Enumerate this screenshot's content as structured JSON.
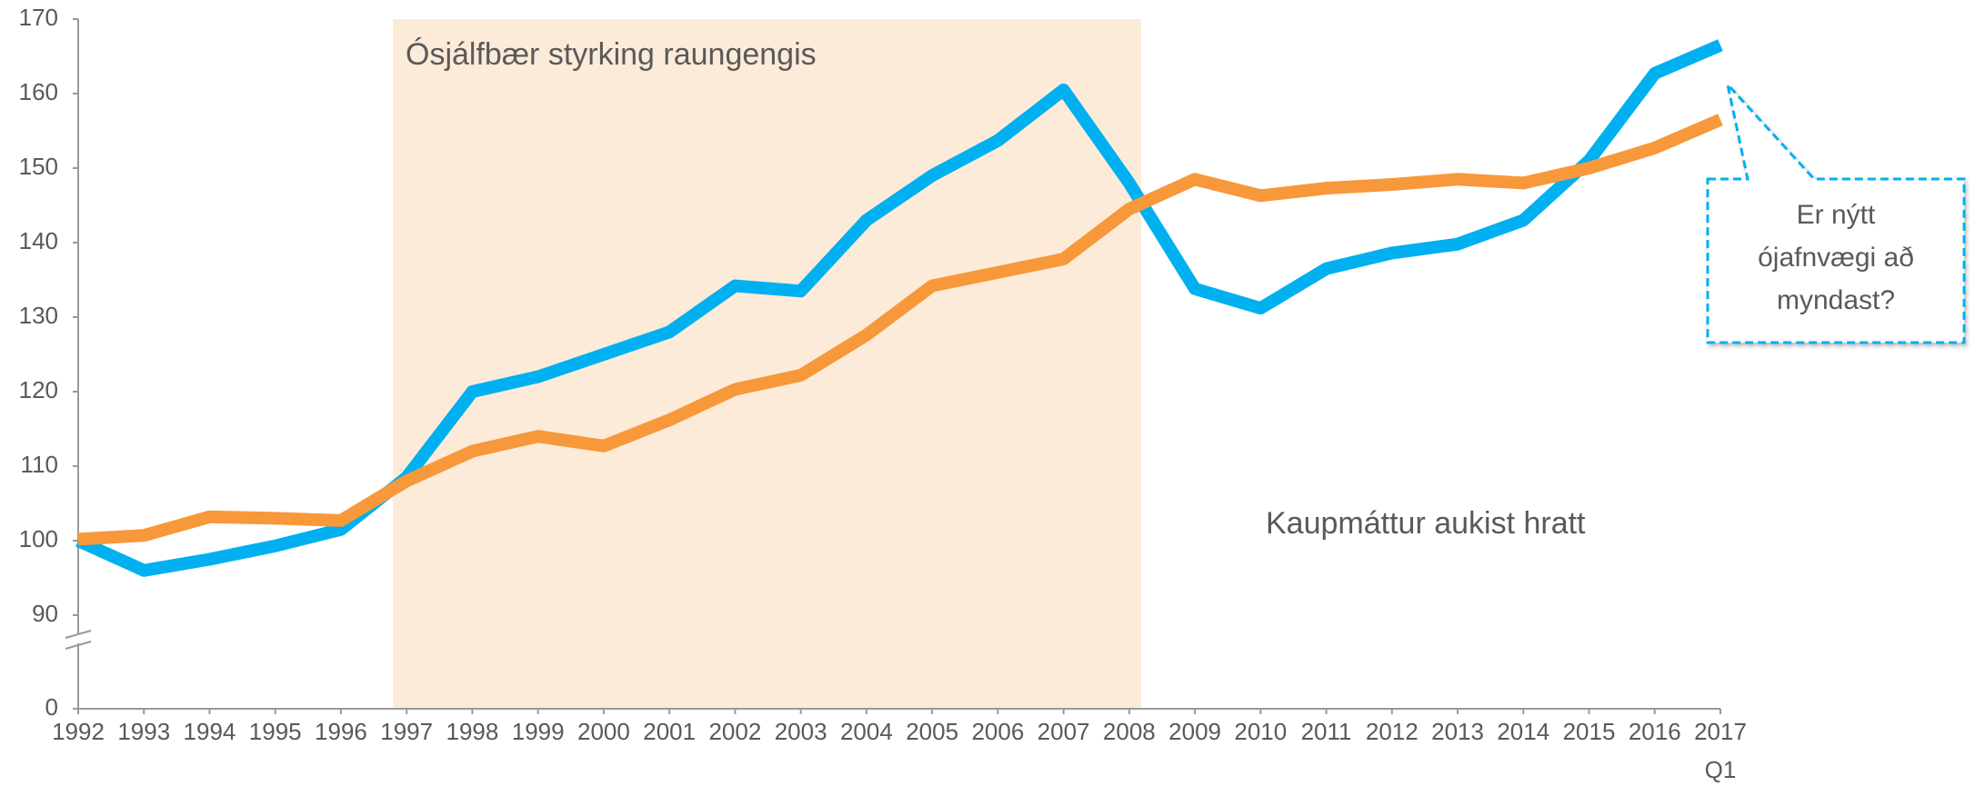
{
  "chart_data": {
    "type": "line",
    "categories": [
      "1992",
      "1993",
      "1994",
      "1995",
      "1996",
      "1997",
      "1998",
      "1999",
      "2000",
      "2001",
      "2002",
      "2003",
      "2004",
      "2005",
      "2006",
      "2007",
      "2008",
      "2009",
      "2010",
      "2011",
      "2012",
      "2013",
      "2014",
      "2015",
      "2016",
      "2017\nQ1"
    ],
    "series": [
      {
        "color": "#00b0f0",
        "values": [
          100,
          96,
          97.5,
          99.3,
          101.5,
          108.5,
          120,
          122,
          125,
          128,
          134.2,
          133.5,
          143,
          149,
          153.7,
          160.5,
          148,
          133.8,
          131.2,
          136.5,
          138.6,
          139.8,
          143,
          151,
          162.7,
          166.5
        ]
      },
      {
        "color": "#f7983a",
        "values": [
          100.2,
          100.7,
          103.2,
          103,
          102.7,
          108,
          112,
          114,
          112.7,
          116.2,
          120.3,
          122.2,
          127.6,
          134.2,
          136,
          137.8,
          144.5,
          148.5,
          146.3,
          147.3,
          147.8,
          148.5,
          148,
          150,
          152.7,
          156.5
        ]
      }
    ],
    "ylim": [
      0,
      170
    ],
    "yticks": [
      0,
      90,
      100,
      110,
      120,
      130,
      140,
      150,
      160,
      170
    ],
    "axis_break": true,
    "annotations": [
      "Ósjálfbær styrking raungengis",
      "Kaupmáttur aukist hratt"
    ],
    "callout": [
      "Er nýtt",
      "ójafnvægi að",
      "myndast?"
    ]
  }
}
